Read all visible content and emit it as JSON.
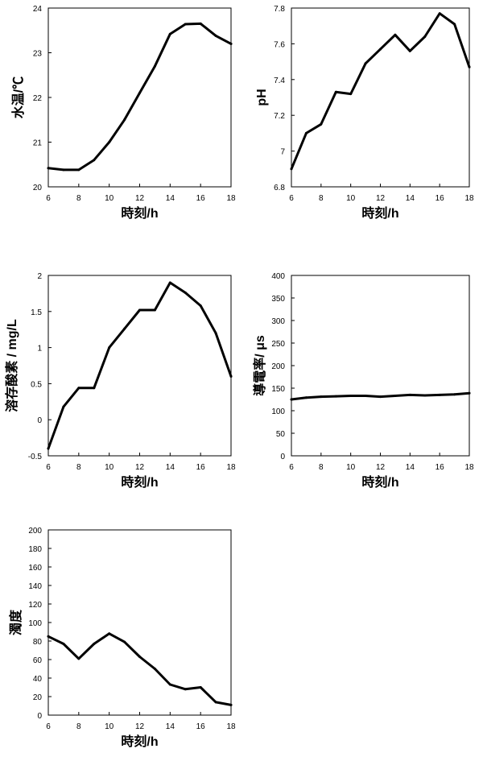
{
  "chart_data": [
    {
      "type": "line",
      "title": "",
      "xlabel": "時刻/h",
      "ylabel": "水温/℃",
      "xlim": [
        6,
        18
      ],
      "ylim": [
        20,
        24
      ],
      "xticks": [
        6,
        8,
        10,
        12,
        14,
        16,
        18
      ],
      "yticks": [
        20,
        21,
        22,
        23,
        24
      ],
      "grid": false,
      "series": [
        {
          "x": [
            6,
            7,
            8,
            9,
            10,
            11,
            12,
            13,
            14,
            15,
            16,
            17,
            18
          ],
          "values": [
            20.42,
            20.38,
            20.38,
            20.6,
            21.0,
            21.5,
            22.1,
            22.7,
            23.42,
            23.64,
            23.65,
            23.38,
            23.2
          ]
        }
      ]
    },
    {
      "type": "line",
      "title": "",
      "xlabel": "時刻/h",
      "ylabel": "pH",
      "xlim": [
        6,
        18
      ],
      "ylim": [
        6.8,
        7.8
      ],
      "xticks": [
        6,
        8,
        10,
        12,
        14,
        16,
        18
      ],
      "yticks": [
        6.8,
        7,
        7.2,
        7.4,
        7.6,
        7.8
      ],
      "grid": false,
      "series": [
        {
          "x": [
            6,
            7,
            8,
            9,
            10,
            11,
            12,
            13,
            14,
            15,
            16,
            17,
            18
          ],
          "values": [
            6.9,
            7.1,
            7.15,
            7.33,
            7.32,
            7.49,
            7.57,
            7.65,
            7.56,
            7.64,
            7.77,
            7.71,
            7.47
          ]
        }
      ]
    },
    {
      "type": "line",
      "title": "",
      "xlabel": "時刻/h",
      "ylabel": "溶存酸素 / mg/L",
      "xlim": [
        6,
        18
      ],
      "ylim": [
        -0.5,
        2
      ],
      "xticks": [
        6,
        8,
        10,
        12,
        14,
        16,
        18
      ],
      "yticks": [
        -0.5,
        0,
        0.5,
        1,
        1.5,
        2
      ],
      "grid": false,
      "series": [
        {
          "x": [
            6,
            7,
            8,
            9,
            10,
            11,
            12,
            13,
            14,
            15,
            16,
            17,
            18
          ],
          "values": [
            -0.4,
            0.18,
            0.44,
            0.44,
            1.0,
            1.26,
            1.52,
            1.52,
            1.9,
            1.76,
            1.58,
            1.2,
            0.6
          ]
        }
      ]
    },
    {
      "type": "line",
      "title": "",
      "xlabel": "時刻/h",
      "ylabel": "導電率/ μs",
      "xlim": [
        6,
        18
      ],
      "ylim": [
        0,
        400
      ],
      "xticks": [
        6,
        8,
        10,
        12,
        14,
        16,
        18
      ],
      "yticks": [
        0,
        50,
        100,
        150,
        200,
        250,
        300,
        350,
        400
      ],
      "grid": false,
      "series": [
        {
          "x": [
            6,
            7,
            8,
            9,
            10,
            11,
            12,
            13,
            14,
            15,
            16,
            17,
            18
          ],
          "values": [
            125,
            129,
            131,
            132,
            133,
            133,
            131,
            133,
            135,
            134,
            135,
            136,
            139
          ]
        }
      ]
    },
    {
      "type": "line",
      "title": "",
      "xlabel": "時刻/h",
      "ylabel": "濁度",
      "xlim": [
        6,
        18
      ],
      "ylim": [
        0,
        200
      ],
      "xticks": [
        6,
        8,
        10,
        12,
        14,
        16,
        18
      ],
      "yticks": [
        0,
        20,
        40,
        60,
        80,
        100,
        120,
        140,
        160,
        180,
        200
      ],
      "grid": false,
      "series": [
        {
          "x": [
            6,
            7,
            8,
            9,
            10,
            11,
            12,
            13,
            14,
            15,
            16,
            17,
            18
          ],
          "values": [
            85,
            77,
            61,
            77,
            88,
            79,
            63,
            50,
            33,
            28,
            30,
            14,
            11
          ]
        }
      ]
    }
  ]
}
